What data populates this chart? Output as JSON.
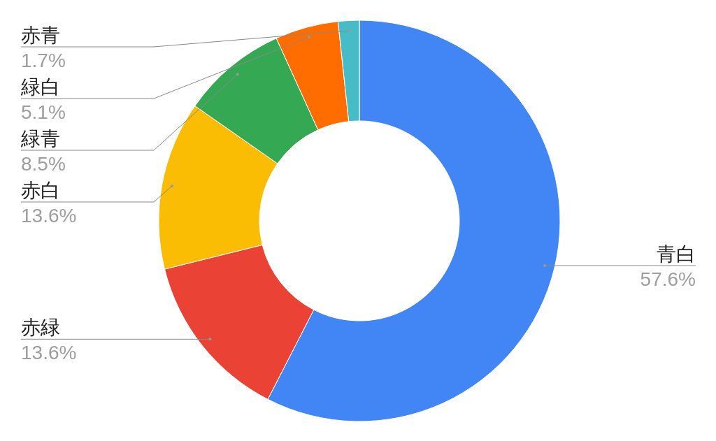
{
  "chart_data": {
    "type": "donut",
    "categories": [
      "青白",
      "赤緑",
      "赤白",
      "緑青",
      "緑白",
      "赤青"
    ],
    "values": [
      57.6,
      13.6,
      13.6,
      8.5,
      5.1,
      1.7
    ],
    "colors": [
      "#4285f4",
      "#ea4335",
      "#fbbc04",
      "#34a853",
      "#ff6d01",
      "#46bdc6"
    ],
    "value_labels": [
      "57.6%",
      "13.6%",
      "13.6%",
      "8.5%",
      "5.1%",
      "1.7%"
    ]
  }
}
